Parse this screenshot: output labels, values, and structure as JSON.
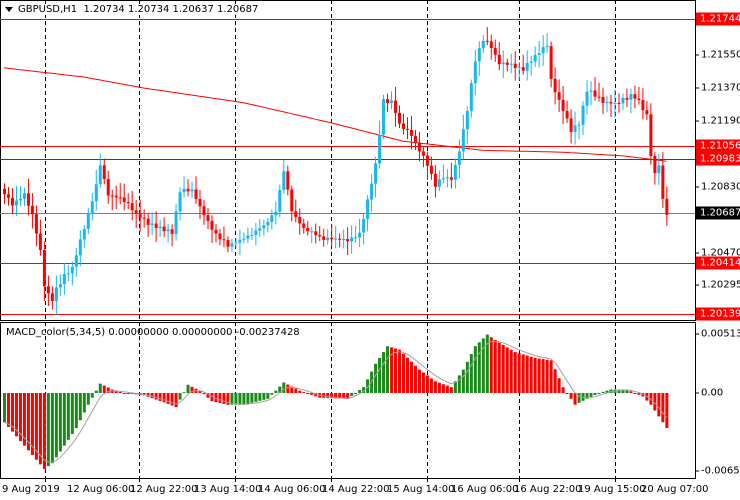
{
  "header": {
    "symbol": "GBPUSD,H1",
    "ohlc": "1.20734 1.20734 1.20637 1.20687"
  },
  "indicator": {
    "label": "MACD_color(5,34,5) 0.00000000 0.00000000 -0.00237428",
    "axis": [
      "0.0051306",
      "0.00",
      "-0.006569"
    ]
  },
  "price_axis": [
    "1.21550",
    "1.21370",
    "1.21190",
    "1.20830",
    "1.20470",
    "1.20295"
  ],
  "levels": [
    {
      "label": "1.21744",
      "price": 1.21744,
      "color": "#ff0000"
    },
    {
      "label": "1.21056",
      "price": 1.21056,
      "color": "#ff0000"
    },
    {
      "label": "1.20983",
      "price": 1.20983,
      "color": "#ff0000"
    },
    {
      "label": "1.20414",
      "price": 1.20414,
      "color": "#ff0000"
    },
    {
      "label": "1.20139",
      "price": 1.20139,
      "color": "#ff0000"
    }
  ],
  "current_price": {
    "label": "1.20687",
    "price": 1.20687
  },
  "time_axis": [
    "9 Aug 2019",
    "12 Aug 06:00",
    "12 Aug 22:00",
    "13 Aug 14:00",
    "14 Aug 06:00",
    "14 Aug 22:00",
    "15 Aug 14:00",
    "16 Aug 06:00",
    "16 Aug 22:00",
    "19 Aug 15:00",
    "20 Aug 07:00"
  ],
  "colors": {
    "bull": "#19b6f0",
    "bear": "#ff0000",
    "ma": "#ff0000",
    "macd_up": "#1a8a1a",
    "macd_down": "#ff0000",
    "signal": "#a0a0a0",
    "grid": "#000000"
  },
  "chart_data": {
    "type": "candlestick",
    "bars": 167,
    "price_range": [
      1.20115,
      1.218
    ],
    "close_waypoints": [
      [
        0,
        1.2079
      ],
      [
        2,
        1.2073
      ],
      [
        5,
        1.2079
      ],
      [
        7,
        1.2068
      ],
      [
        9,
        1.2048
      ],
      [
        10,
        1.203
      ],
      [
        11,
        1.2024
      ],
      [
        12,
        1.2021
      ],
      [
        13,
        1.2027
      ],
      [
        15,
        1.2035
      ],
      [
        17,
        1.2039
      ],
      [
        19,
        1.2054
      ],
      [
        21,
        1.2068
      ],
      [
        23,
        1.2084
      ],
      [
        24,
        1.2095
      ],
      [
        26,
        1.2079
      ],
      [
        30,
        1.2076
      ],
      [
        33,
        1.2068
      ],
      [
        37,
        1.2062
      ],
      [
        42,
        1.2058
      ],
      [
        44,
        1.2081
      ],
      [
        47,
        1.2081
      ],
      [
        50,
        1.2068
      ],
      [
        53,
        1.2057
      ],
      [
        56,
        1.2051
      ],
      [
        60,
        1.2055
      ],
      [
        65,
        1.2062
      ],
      [
        68,
        1.207
      ],
      [
        70,
        1.2092
      ],
      [
        72,
        1.207
      ],
      [
        75,
        1.206
      ],
      [
        80,
        1.2055
      ],
      [
        86,
        1.2054
      ],
      [
        89,
        1.2057
      ],
      [
        91,
        1.2076
      ],
      [
        93,
        1.2095
      ],
      [
        95,
        1.213
      ],
      [
        97,
        1.213
      ],
      [
        99,
        1.2117
      ],
      [
        102,
        1.2111
      ],
      [
        104,
        1.2103
      ],
      [
        106,
        1.2095
      ],
      [
        108,
        1.2084
      ],
      [
        110,
        1.2088
      ],
      [
        112,
        1.2087
      ],
      [
        114,
        1.2103
      ],
      [
        116,
        1.2125
      ],
      [
        118,
        1.2152
      ],
      [
        120,
        1.2163
      ],
      [
        122,
        1.216
      ],
      [
        124,
        1.215
      ],
      [
        127,
        1.215
      ],
      [
        130,
        1.2147
      ],
      [
        133,
        1.2155
      ],
      [
        136,
        1.216
      ],
      [
        137,
        1.2141
      ],
      [
        140,
        1.2125
      ],
      [
        142,
        1.2114
      ],
      [
        144,
        1.2117
      ],
      [
        146,
        1.2136
      ],
      [
        148,
        1.2133
      ],
      [
        150,
        1.213
      ],
      [
        153,
        1.2128
      ],
      [
        157,
        1.2133
      ],
      [
        159,
        1.213
      ],
      [
        161,
        1.2122
      ],
      [
        162,
        1.21
      ],
      [
        163,
        1.209
      ],
      [
        164,
        1.2095
      ],
      [
        165,
        1.2076
      ],
      [
        166,
        1.20687
      ]
    ],
    "ma_waypoints": [
      [
        0,
        1.2148
      ],
      [
        20,
        1.2143
      ],
      [
        35,
        1.2137
      ],
      [
        60,
        1.2129
      ],
      [
        82,
        1.2118
      ],
      [
        100,
        1.2108
      ],
      [
        120,
        1.2103
      ],
      [
        140,
        1.2102
      ],
      [
        155,
        1.21
      ],
      [
        166,
        1.2097
      ]
    ],
    "macd_range": [
      -0.006569,
      0.0051306
    ],
    "macd_waypoints": [
      [
        0,
        -0.0025
      ],
      [
        5,
        -0.0045
      ],
      [
        10,
        -0.0065
      ],
      [
        12,
        -0.006
      ],
      [
        15,
        -0.0045
      ],
      [
        18,
        -0.003
      ],
      [
        21,
        -0.001
      ],
      [
        24,
        0.0008
      ],
      [
        27,
        0.0003
      ],
      [
        30,
        0.0
      ],
      [
        35,
        -0.0002
      ],
      [
        40,
        -0.0008
      ],
      [
        43,
        -0.0012
      ],
      [
        46,
        0.0007
      ],
      [
        49,
        0.0002
      ],
      [
        52,
        -0.0007
      ],
      [
        56,
        -0.001
      ],
      [
        60,
        -0.001
      ],
      [
        66,
        -0.0005
      ],
      [
        70,
        0.0009
      ],
      [
        74,
        0.0002
      ],
      [
        79,
        -0.0004
      ],
      [
        86,
        -0.0005
      ],
      [
        90,
        0.0005
      ],
      [
        93,
        0.0025
      ],
      [
        96,
        0.004
      ],
      [
        99,
        0.0037
      ],
      [
        104,
        0.002
      ],
      [
        108,
        0.001
      ],
      [
        112,
        0.0005
      ],
      [
        115,
        0.002
      ],
      [
        118,
        0.004
      ],
      [
        121,
        0.005
      ],
      [
        124,
        0.0043
      ],
      [
        128,
        0.0035
      ],
      [
        133,
        0.003
      ],
      [
        137,
        0.0028
      ],
      [
        140,
        0.0005
      ],
      [
        143,
        -0.001
      ],
      [
        146,
        -0.0005
      ],
      [
        149,
        0.0
      ],
      [
        152,
        0.0003
      ],
      [
        156,
        0.0003
      ],
      [
        160,
        -0.0003
      ],
      [
        162,
        -0.001
      ],
      [
        164,
        -0.002
      ],
      [
        166,
        -0.003
      ]
    ]
  }
}
